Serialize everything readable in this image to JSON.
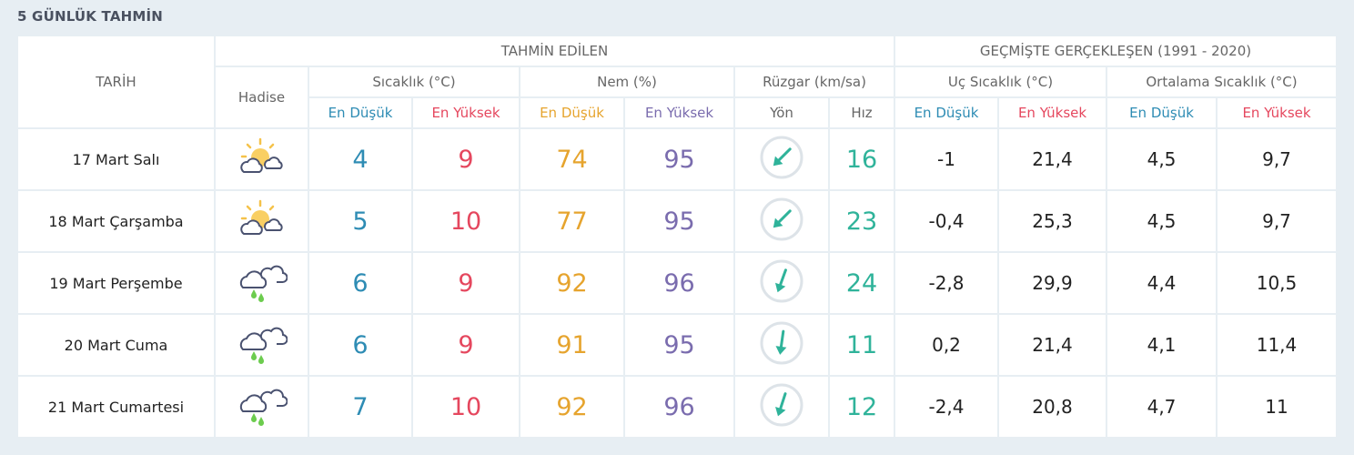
{
  "title": "5 GÜNLÜK TAHMİN",
  "headers": {
    "tarih": "TARİH",
    "tahmin": "TAHMİN EDİLEN",
    "gecmis": "GEÇMİŞTE GERÇEKLEŞEN (1991 - 2020)",
    "hadise": "Hadise",
    "sicaklik": "Sıcaklık (°C)",
    "nem": "Nem (%)",
    "ruzgar": "Rüzgar (km/sa)",
    "uc": "Uç Sıcaklık (°C)",
    "ortalama": "Ortalama Sıcaklık (°C)",
    "en_dusuk": "En Düşük",
    "en_yuksek": "En Yüksek",
    "yon": "Yön",
    "hiz": "Hız"
  },
  "colors": {
    "min_temp": "#2e8cb4",
    "max_temp": "#e5475e",
    "min_hum": "#e6a42e",
    "max_hum": "#7a6cae",
    "wind": "#2fb39a"
  },
  "rows": [
    {
      "date": "17 Mart Salı",
      "icon": "partly-cloudy-icon",
      "min": "4",
      "max": "9",
      "hum_min": "74",
      "hum_max": "95",
      "wind_dir_deg": 225,
      "wind_speed": "16",
      "uc_min": "-1",
      "uc_max": "21,4",
      "avg_min": "4,5",
      "avg_max": "9,7"
    },
    {
      "date": "18 Mart Çarşamba",
      "icon": "partly-cloudy-icon",
      "min": "5",
      "max": "10",
      "hum_min": "77",
      "hum_max": "95",
      "wind_dir_deg": 225,
      "wind_speed": "23",
      "uc_min": "-0,4",
      "uc_max": "25,3",
      "avg_min": "4,5",
      "avg_max": "9,7"
    },
    {
      "date": "19 Mart Perşembe",
      "icon": "rain-icon",
      "min": "6",
      "max": "9",
      "hum_min": "92",
      "hum_max": "96",
      "wind_dir_deg": 200,
      "wind_speed": "24",
      "uc_min": "-2,8",
      "uc_max": "29,9",
      "avg_min": "4,4",
      "avg_max": "10,5"
    },
    {
      "date": "20 Mart Cuma",
      "icon": "rain-icon",
      "min": "6",
      "max": "9",
      "hum_min": "91",
      "hum_max": "95",
      "wind_dir_deg": 188,
      "wind_speed": "11",
      "uc_min": "0,2",
      "uc_max": "21,4",
      "avg_min": "4,1",
      "avg_max": "11,4"
    },
    {
      "date": "21 Mart Cumartesi",
      "icon": "rain-icon",
      "min": "7",
      "max": "10",
      "hum_min": "92",
      "hum_max": "96",
      "wind_dir_deg": 198,
      "wind_speed": "12",
      "uc_min": "-2,4",
      "uc_max": "20,8",
      "avg_min": "4,7",
      "avg_max": "11"
    }
  ]
}
